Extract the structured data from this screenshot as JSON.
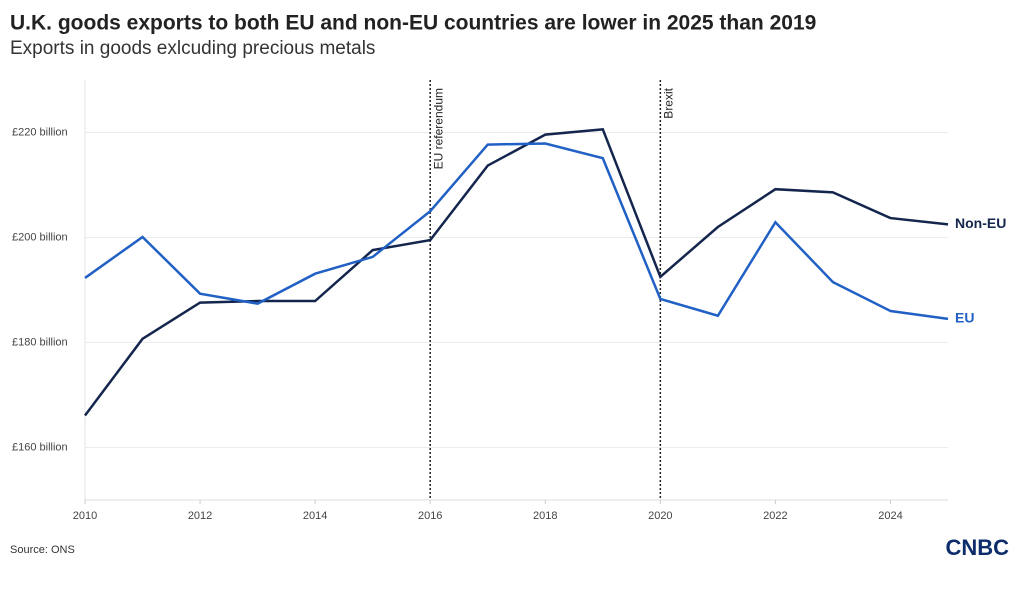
{
  "chart_data": {
    "type": "line",
    "title": "U.K. goods exports to both EU and non-EU countries are lower in 2025 than 2019",
    "subtitle": "Exports in goods exlcuding precious metals",
    "source": "Source: ONS",
    "brand": "CNBC",
    "x": [
      2010,
      2011,
      2012,
      2013,
      2014,
      2015,
      2016,
      2017,
      2018,
      2019,
      2020,
      2021,
      2022,
      2023,
      2024,
      2025
    ],
    "series": [
      {
        "name": "Non-EU",
        "color": "#14264d",
        "values": [
          166.1,
          180.7,
          187.6,
          187.9,
          187.9,
          197.6,
          199.5,
          213.7,
          219.6,
          220.6,
          192.5,
          202.0,
          209.2,
          208.6,
          203.7,
          202.5
        ]
      },
      {
        "name": "EU",
        "color": "#2160c4",
        "values": [
          192.3,
          200.1,
          189.3,
          187.4,
          193.1,
          196.3,
          205.0,
          217.7,
          217.9,
          215.1,
          188.3,
          185.1,
          202.9,
          191.5,
          186.0,
          184.5
        ]
      }
    ],
    "xlim": [
      2010,
      2025
    ],
    "xticks": [
      2010,
      2012,
      2014,
      2016,
      2018,
      2020,
      2022,
      2024
    ],
    "ylim": [
      150,
      230
    ],
    "yticks": [
      {
        "value": 160,
        "label": "£160 billion"
      },
      {
        "value": 180,
        "label": "£180 billion"
      },
      {
        "value": 200,
        "label": "£200 billion"
      },
      {
        "value": 220,
        "label": "£220 billion"
      }
    ],
    "grid": true,
    "annotations": [
      {
        "x": 2016,
        "text": "EU referendum"
      },
      {
        "x": 2020,
        "text": "Brexit"
      }
    ]
  }
}
